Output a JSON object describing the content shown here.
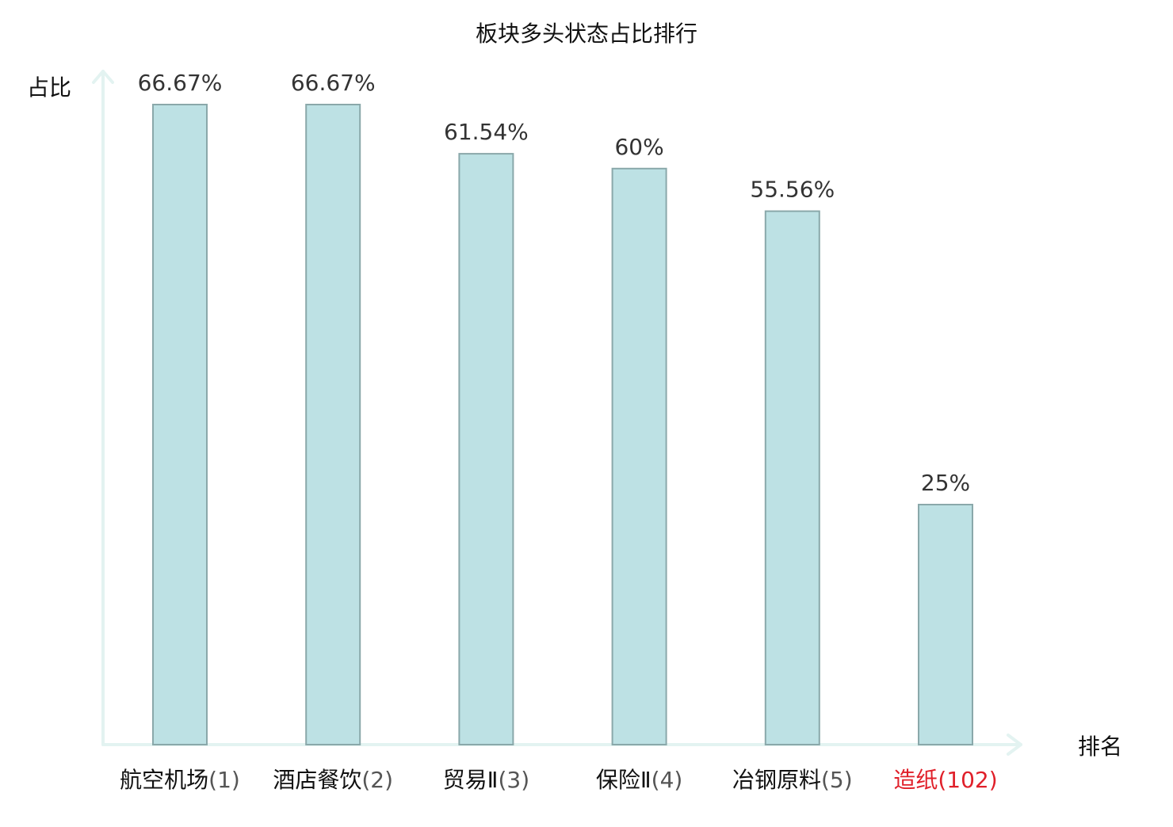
{
  "chart_data": {
    "type": "bar",
    "title": "板块多头状态占比排行",
    "xlabel": "排名",
    "ylabel": "占比",
    "categories": [
      {
        "name": "航空机场",
        "rank": "(1)",
        "highlight": false
      },
      {
        "name": "酒店餐饮",
        "rank": "(2)",
        "highlight": false
      },
      {
        "name": "贸易Ⅱ",
        "rank": "(3)",
        "highlight": false
      },
      {
        "name": "保险Ⅱ",
        "rank": "(4)",
        "highlight": false
      },
      {
        "name": "冶钢原料",
        "rank": "(5)",
        "highlight": false
      },
      {
        "name": "造纸",
        "rank": "(102)",
        "highlight": true
      }
    ],
    "values": [
      66.67,
      66.67,
      61.54,
      60,
      55.56,
      25
    ],
    "value_labels": [
      "66.67%",
      "66.67%",
      "61.54%",
      "60%",
      "55.56%",
      "25%"
    ],
    "ylim": [
      0,
      70
    ],
    "grid": false,
    "legend": "none"
  },
  "colors": {
    "bar_fill": "#bde1e4",
    "bar_stroke": "#8aa8aa",
    "axis": "#e3f3f1",
    "label_text": "#333333",
    "category_text": "#111111",
    "rank_text": "#555555",
    "highlight_text": "#e0202a"
  }
}
